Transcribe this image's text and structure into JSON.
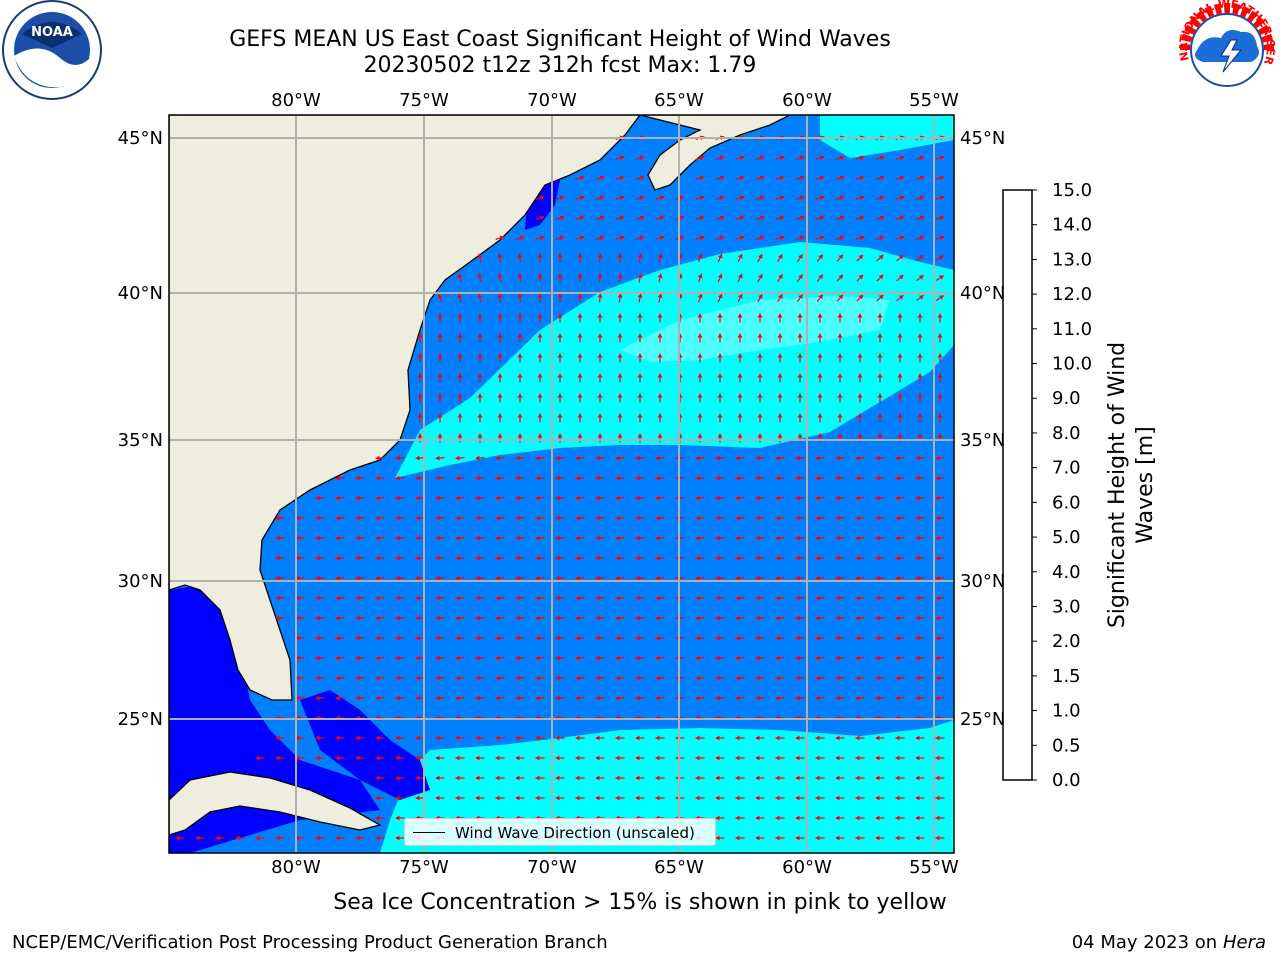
{
  "title_line1": "GEFS MEAN US East Coast Significant Height of Wind Waves",
  "title_line2": "20230502 t12z 312h fcst   Max: 1.79",
  "lon_labels": [
    "80°W",
    "75°W",
    "70°W",
    "65°W",
    "60°W",
    "55°W"
  ],
  "lat_labels": [
    "45°N",
    "40°N",
    "35°N",
    "30°N",
    "25°N"
  ],
  "colorbar": {
    "label": "Significant Height of Wind Waves [m]",
    "ticks": [
      "0.0",
      "0.5",
      "1.0",
      "1.5",
      "2.0",
      "3.0",
      "4.0",
      "5.0",
      "6.0",
      "7.0",
      "8.0",
      "9.0",
      "10.0",
      "11.0",
      "12.0",
      "13.0",
      "14.0",
      "15.0"
    ],
    "colors": [
      "#0000ff",
      "#0080ff",
      "#00ffff",
      "#4cffff",
      "#99ffff",
      "#4dff80",
      "#00e600",
      "#33cc00",
      "#99ee00",
      "#ccff00",
      "#ffff00",
      "#ffee00",
      "#ffd000",
      "#ffaa00",
      "#ff8000",
      "#ff5000",
      "#ff2000"
    ]
  },
  "legend_label": "Wind Wave Direction (unscaled)",
  "note": "Sea Ice Concentration > 15% is shown in pink to yellow",
  "credit": "NCEP/EMC/Verification Post Processing Product Generation Branch",
  "date": "04 May 2023 on",
  "host": "Hera",
  "logo_noaa_text": "NOAA",
  "logo_nws_text": "NATIONAL WEATHER SERVICE",
  "colors": {
    "land": "#efedde",
    "ocean_low": "#0000ff",
    "ocean_mid": "#0080ff",
    "ocean_high": "#00ffff",
    "ocean_top": "#4cffff",
    "arrow": "#ff0000",
    "grid": "#b0b0b0"
  }
}
